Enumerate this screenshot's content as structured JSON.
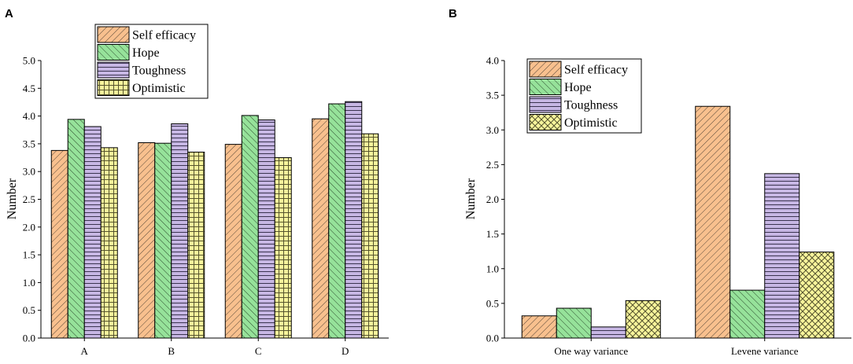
{
  "chart_data": [
    {
      "panel": "A",
      "type": "bar",
      "categories": [
        "A",
        "B",
        "C",
        "D"
      ],
      "series": [
        {
          "name": "Self efficacy",
          "values": [
            3.38,
            3.52,
            3.49,
            3.95
          ]
        },
        {
          "name": "Hope",
          "values": [
            3.94,
            3.51,
            4.01,
            4.22
          ]
        },
        {
          "name": "Toughness",
          "values": [
            3.81,
            3.86,
            3.93,
            4.26
          ]
        },
        {
          "name": "Optimistic",
          "values": [
            3.43,
            3.35,
            3.25,
            3.68
          ]
        }
      ],
      "ylabel": "Number",
      "xlabel": "",
      "ylim": [
        0,
        5.0
      ],
      "yticks": [
        "0.0",
        "0.5",
        "1.0",
        "1.5",
        "2.0",
        "2.5",
        "3.0",
        "3.5",
        "4.0",
        "4.5",
        "5.0"
      ],
      "legend_position": "top-left"
    },
    {
      "panel": "B",
      "type": "bar",
      "categories": [
        "One way variance",
        "Levene variance"
      ],
      "series": [
        {
          "name": "Self efficacy",
          "values": [
            0.32,
            3.34
          ]
        },
        {
          "name": "Hope",
          "values": [
            0.43,
            0.69
          ]
        },
        {
          "name": "Toughness",
          "values": [
            0.16,
            2.37
          ]
        },
        {
          "name": "Optimistic",
          "values": [
            0.54,
            1.24
          ]
        }
      ],
      "ylabel": "Number",
      "xlabel": "",
      "ylim": [
        0,
        4.0
      ],
      "yticks": [
        "0.0",
        "0.5",
        "1.0",
        "1.5",
        "2.0",
        "2.5",
        "3.0",
        "3.5",
        "4.0"
      ],
      "legend_position": "top-left"
    }
  ],
  "series_styles": [
    {
      "fill": "#f8c08e",
      "pattern": "diag-right"
    },
    {
      "fill": "#96e29a",
      "pattern": "diag-left"
    },
    {
      "fill": "#c7b7e4",
      "pattern": "horizontal"
    },
    {
      "fill": "#f8f59c",
      "pattern": "grid"
    }
  ],
  "optimistic_pattern_b": "crosshatch"
}
